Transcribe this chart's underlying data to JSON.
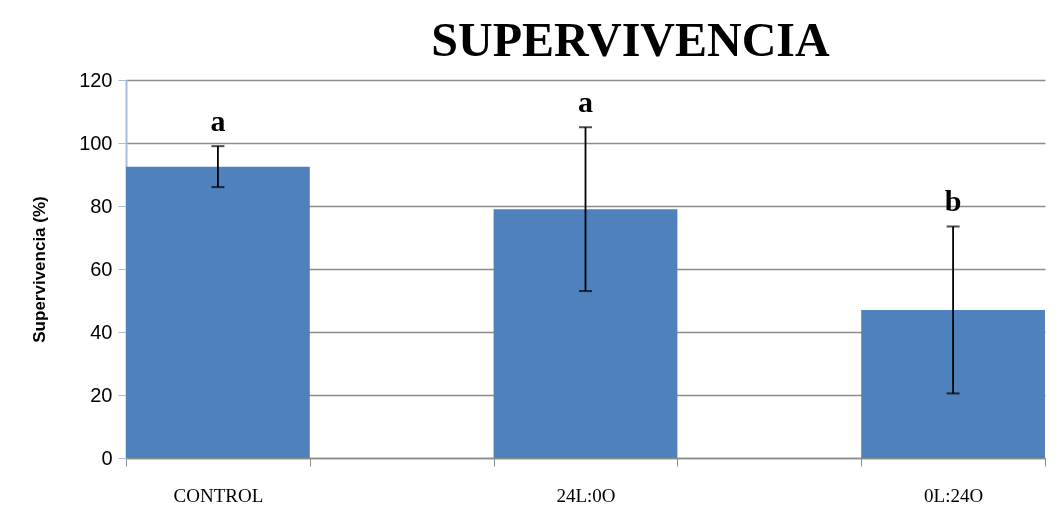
{
  "chart_data": {
    "type": "bar",
    "title": "SUPERVIVENCIA",
    "ylabel": "Supervivencia (%)",
    "categories": [
      "CONTROL",
      null,
      "24L:0O",
      null,
      "0L:24O"
    ],
    "values": [
      92.5,
      null,
      79,
      null,
      47
    ],
    "errors": [
      6.5,
      null,
      26,
      null,
      26.5
    ],
    "color": "#4f81bd",
    "ylim": [
      0,
      120
    ],
    "yticks": [
      0,
      20,
      40,
      60,
      80,
      100,
      120
    ],
    "grid": "y",
    "annotations": [
      "a",
      "a",
      "b"
    ]
  }
}
